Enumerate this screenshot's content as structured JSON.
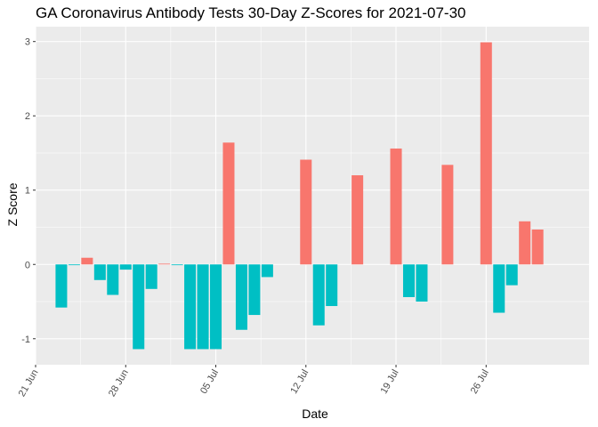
{
  "chart_data": {
    "type": "bar",
    "title": "GA Coronavirus Antibody Tests 30-Day Z-Scores for 2021-07-30",
    "xlabel": "Date",
    "ylabel": "Z Score",
    "x_type": "date",
    "xlim": [
      "2021-06-21",
      "2021-08-03"
    ],
    "ylim": [
      -1.35,
      3.2
    ],
    "x_ticks": [
      {
        "date": "2021-06-21",
        "label": "21 Jun"
      },
      {
        "date": "2021-06-28",
        "label": "28 Jun"
      },
      {
        "date": "2021-07-05",
        "label": "05 Jul"
      },
      {
        "date": "2021-07-12",
        "label": "12 Jul"
      },
      {
        "date": "2021-07-19",
        "label": "19 Jul"
      },
      {
        "date": "2021-07-26",
        "label": "26 Jul"
      }
    ],
    "y_ticks": [
      {
        "value": -1,
        "label": "-1"
      },
      {
        "value": 0,
        "label": "0"
      },
      {
        "value": 1,
        "label": "1"
      },
      {
        "value": 2,
        "label": "2"
      },
      {
        "value": 3,
        "label": "3"
      }
    ],
    "grid": true,
    "legend": "none",
    "colors": {
      "positive": "#F8766D",
      "negative": "#00BFC4",
      "panel": "#EBEBEB",
      "grid": "#FFFFFF"
    },
    "bars": [
      {
        "date": "2021-06-23",
        "value": -0.58
      },
      {
        "date": "2021-06-24",
        "value": -0.01
      },
      {
        "date": "2021-06-25",
        "value": 0.09
      },
      {
        "date": "2021-06-26",
        "value": -0.21
      },
      {
        "date": "2021-06-27",
        "value": -0.41
      },
      {
        "date": "2021-06-28",
        "value": -0.07
      },
      {
        "date": "2021-06-29",
        "value": -1.14
      },
      {
        "date": "2021-06-30",
        "value": -0.33
      },
      {
        "date": "2021-07-01",
        "value": 0.01
      },
      {
        "date": "2021-07-02",
        "value": -0.01
      },
      {
        "date": "2021-07-03",
        "value": -1.14
      },
      {
        "date": "2021-07-04",
        "value": -1.14
      },
      {
        "date": "2021-07-05",
        "value": -1.14
      },
      {
        "date": "2021-07-06",
        "value": 1.64
      },
      {
        "date": "2021-07-07",
        "value": -0.88
      },
      {
        "date": "2021-07-08",
        "value": -0.68
      },
      {
        "date": "2021-07-09",
        "value": -0.17
      },
      {
        "date": "2021-07-12",
        "value": 1.41
      },
      {
        "date": "2021-07-13",
        "value": -0.82
      },
      {
        "date": "2021-07-14",
        "value": -0.56
      },
      {
        "date": "2021-07-16",
        "value": 1.2
      },
      {
        "date": "2021-07-19",
        "value": 1.56
      },
      {
        "date": "2021-07-20",
        "value": -0.44
      },
      {
        "date": "2021-07-21",
        "value": -0.5
      },
      {
        "date": "2021-07-23",
        "value": 1.34
      },
      {
        "date": "2021-07-26",
        "value": 2.99
      },
      {
        "date": "2021-07-27",
        "value": -0.65
      },
      {
        "date": "2021-07-28",
        "value": -0.28
      },
      {
        "date": "2021-07-29",
        "value": 0.58
      },
      {
        "date": "2021-07-30",
        "value": 0.47
      }
    ]
  }
}
